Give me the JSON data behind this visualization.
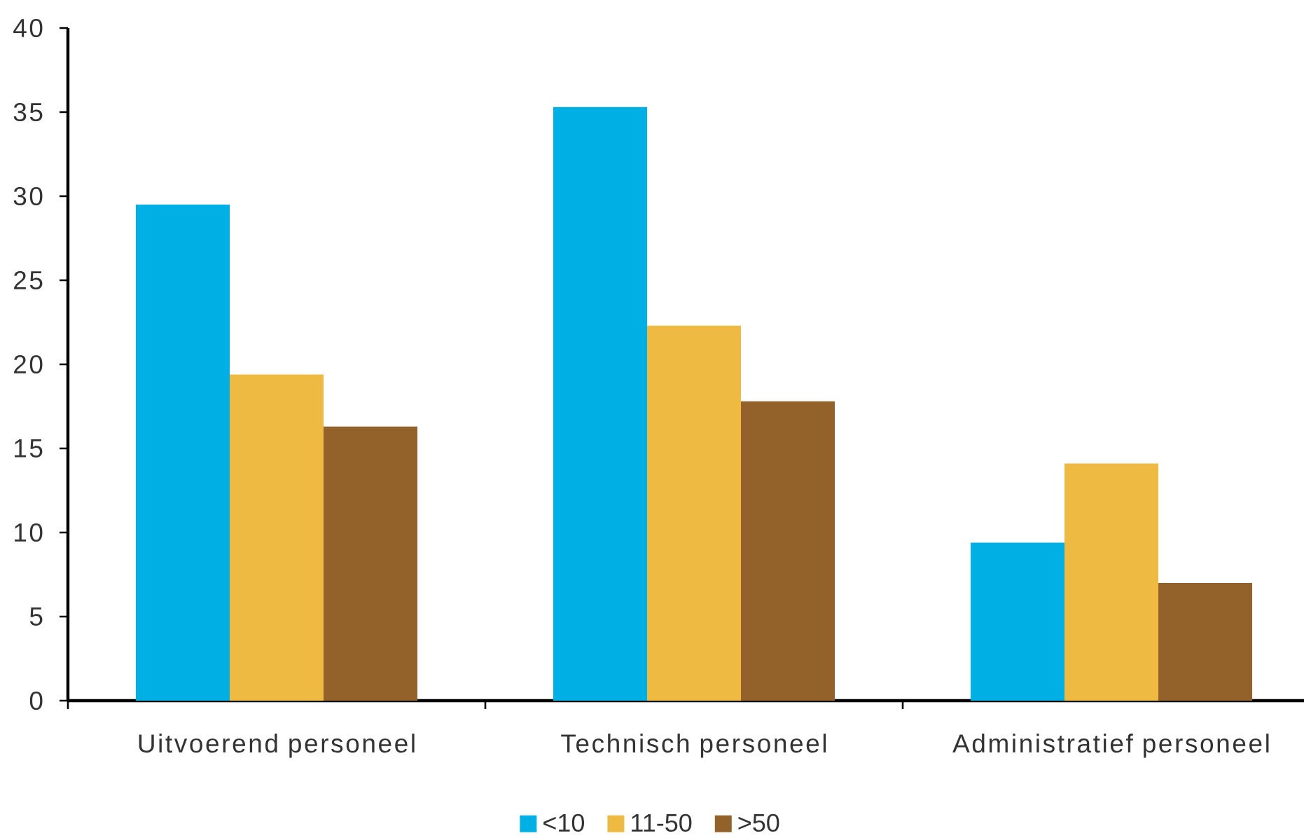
{
  "chart_data": {
    "type": "bar",
    "categories": [
      "Uitvoerend personeel",
      "Technisch personeel",
      "Administratief personeel"
    ],
    "series": [
      {
        "name": "<10",
        "color": "#00b0e4",
        "values": [
          29.5,
          35.3,
          9.4
        ]
      },
      {
        "name": "11-50",
        "color": "#eeba42",
        "values": [
          19.4,
          22.3,
          14.1
        ]
      },
      {
        "name": ">50",
        "color": "#93622a",
        "values": [
          16.3,
          17.8,
          7.0
        ]
      }
    ],
    "ylim": [
      0,
      40
    ],
    "yticks": [
      0,
      5,
      10,
      15,
      20,
      25,
      30,
      35,
      40
    ],
    "legend": "bottom"
  }
}
